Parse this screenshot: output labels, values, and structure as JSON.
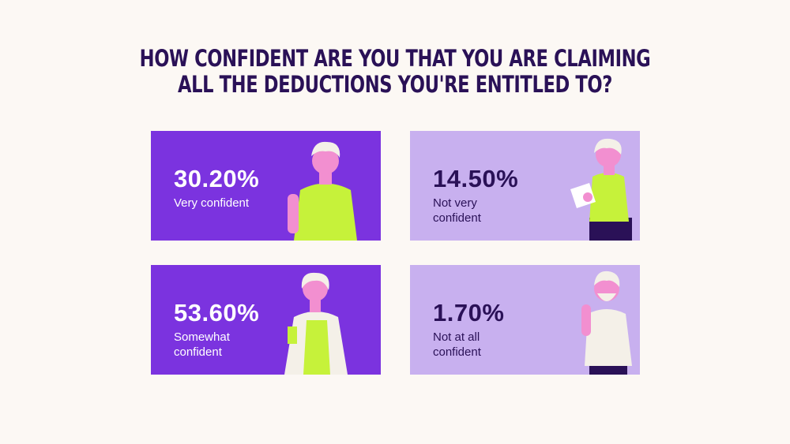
{
  "header": {
    "title_lines": [
      "HOW CONFIDENT ARE YOU THAT YOU ARE CLAIMING",
      "ALL THE DEDUCTIONS YOU'RE ENTITLED TO?"
    ]
  },
  "cards": [
    {
      "value": "30.20%",
      "label": "Very confident"
    },
    {
      "value": "14.50%",
      "label": "Not very confident"
    },
    {
      "value": "53.60%",
      "label": "Somewhat confident"
    },
    {
      "value": "1.70%",
      "label": "Not at all confident"
    }
  ]
}
